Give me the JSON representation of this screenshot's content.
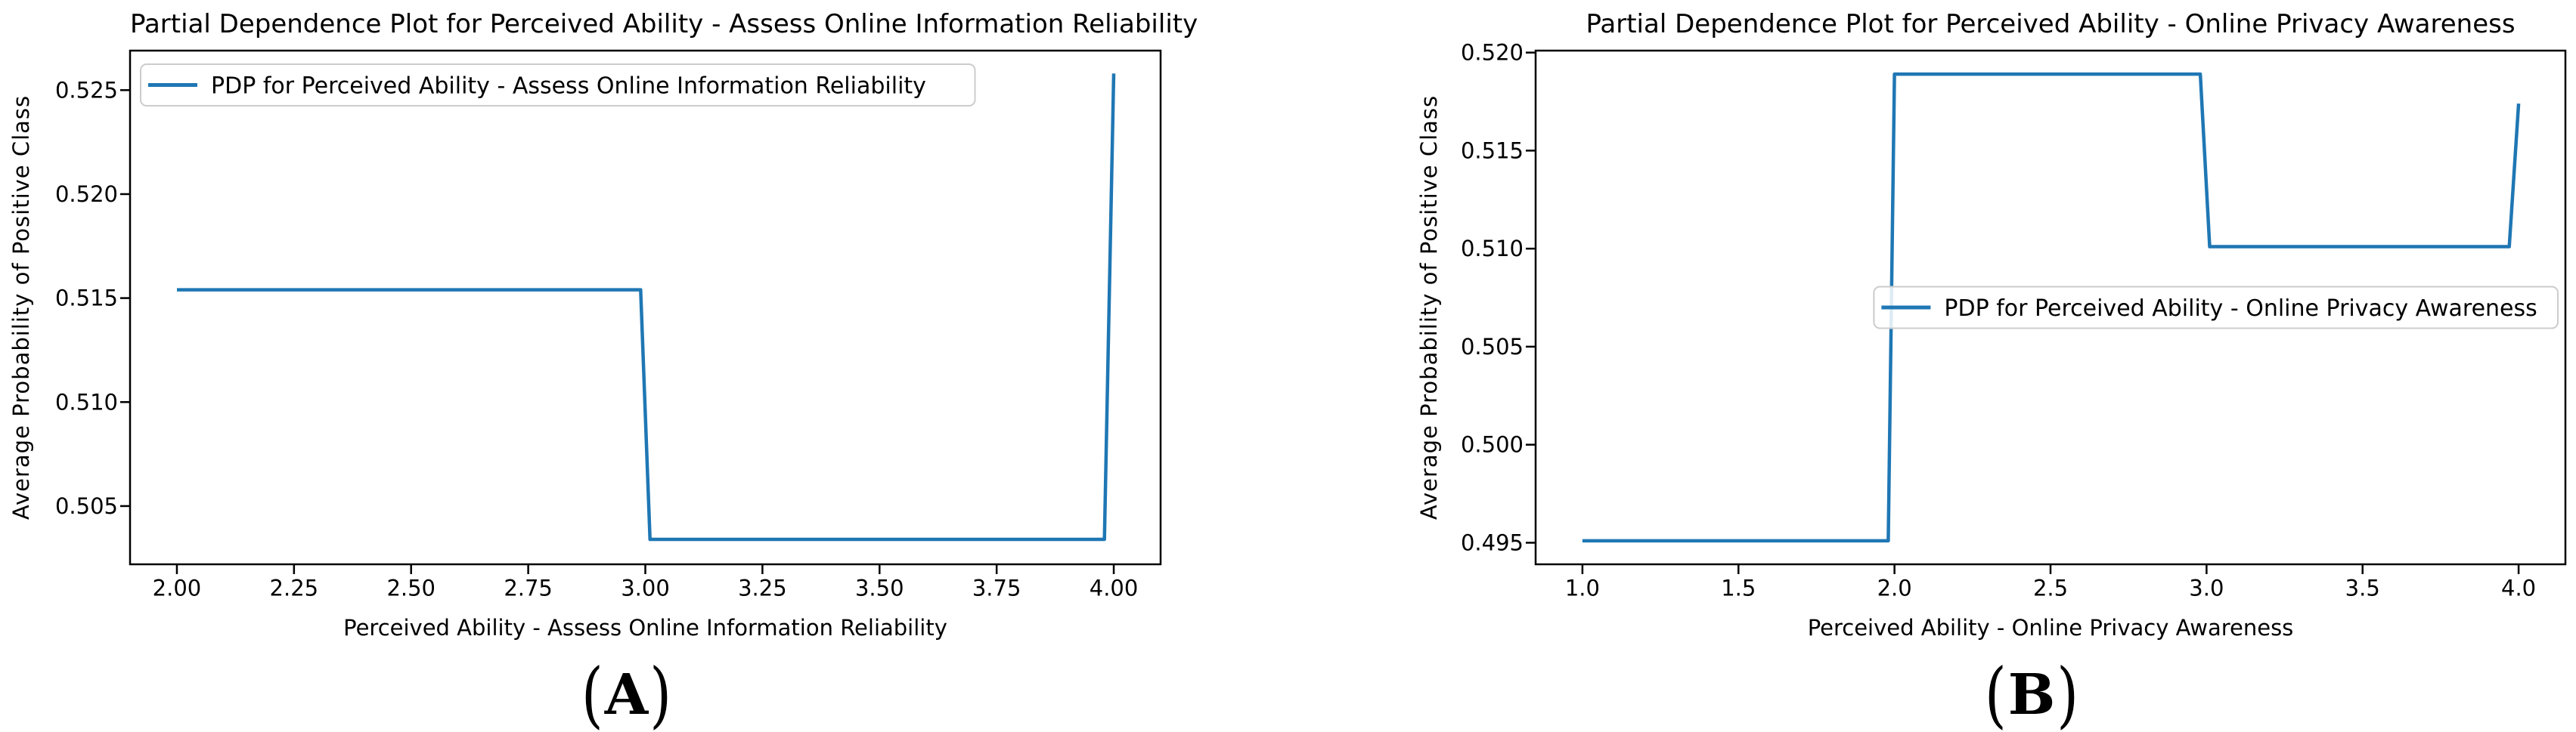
{
  "page": {
    "background": "#ffffff"
  },
  "figures": [
    {
      "caption": {
        "open": "(",
        "label": "A",
        "close": ")"
      }
    },
    {
      "caption": {
        "open": "(",
        "label": "B",
        "close": ")"
      }
    }
  ],
  "chart_data": [
    {
      "id": "A",
      "type": "line",
      "title": "Partial Dependence Plot for Perceived Ability - Assess Online Information Reliability",
      "xlabel": "Perceived Ability - Assess Online Information Reliability",
      "ylabel": "Average Probability of Positive Class",
      "legend": {
        "label": "PDP for Perceived Ability - Assess Online Information Reliability",
        "location": "upper-left"
      },
      "line_color": "#1f77b4",
      "grid": false,
      "xlim": [
        1.9,
        4.1
      ],
      "ylim": [
        0.5022,
        0.5269
      ],
      "xticks": [
        2.0,
        2.25,
        2.5,
        2.75,
        3.0,
        3.25,
        3.5,
        3.75,
        4.0
      ],
      "xtick_labels": [
        "2.00",
        "2.25",
        "2.50",
        "2.75",
        "3.00",
        "3.25",
        "3.50",
        "3.75",
        "4.00"
      ],
      "yticks": [
        0.505,
        0.51,
        0.515,
        0.52,
        0.525
      ],
      "ytick_labels": [
        "0.505",
        "0.510",
        "0.515",
        "0.520",
        "0.525"
      ],
      "series": [
        {
          "name": "PDP for Perceived Ability - Assess Online Information Reliability",
          "x": [
            2.0,
            2.99,
            3.01,
            3.98,
            4.0
          ],
          "y": [
            0.5154,
            0.5154,
            0.5034,
            0.5034,
            0.5258
          ]
        }
      ]
    },
    {
      "id": "B",
      "type": "line",
      "title": "Partial Dependence Plot for Perceived Ability - Online Privacy Awareness",
      "xlabel": "Perceived Ability - Online Privacy Awareness",
      "ylabel": "Average Probability of Positive Class",
      "legend": {
        "label": "PDP for Perceived Ability - Online Privacy Awareness",
        "location": "center-right"
      },
      "line_color": "#1f77b4",
      "grid": false,
      "xlim": [
        0.85,
        4.15
      ],
      "ylim": [
        0.4939,
        0.5201
      ],
      "xticks": [
        1.0,
        1.5,
        2.0,
        2.5,
        3.0,
        3.5,
        4.0
      ],
      "xtick_labels": [
        "1.0",
        "1.5",
        "2.0",
        "2.5",
        "3.0",
        "3.5",
        "4.0"
      ],
      "yticks": [
        0.495,
        0.5,
        0.505,
        0.51,
        0.515,
        0.52
      ],
      "ytick_labels": [
        "0.495",
        "0.500",
        "0.505",
        "0.510",
        "0.515",
        "0.520"
      ],
      "series": [
        {
          "name": "PDP for Perceived Ability - Online Privacy Awareness",
          "x": [
            1.0,
            1.98,
            2.0,
            2.98,
            3.01,
            3.97,
            4.0
          ],
          "y": [
            0.4951,
            0.4951,
            0.5189,
            0.5189,
            0.5101,
            0.5101,
            0.5174
          ]
        }
      ]
    }
  ]
}
